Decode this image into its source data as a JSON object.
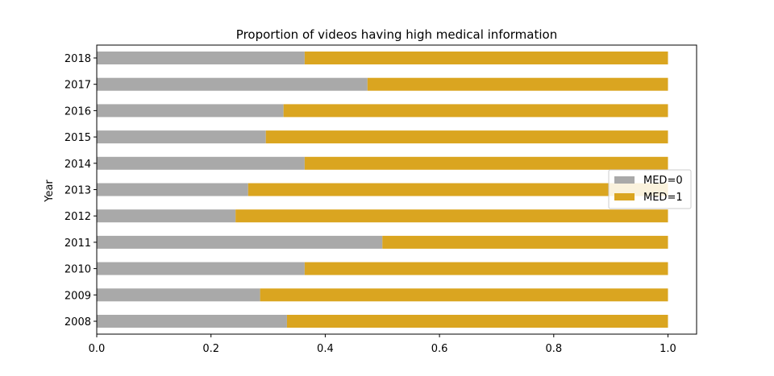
{
  "chart_data": {
    "type": "bar",
    "orientation": "horizontal",
    "stacked": true,
    "title": "Proportion of videos having high medical information",
    "xlabel": "",
    "ylabel": "Year",
    "categories": [
      "2008",
      "2009",
      "2010",
      "2011",
      "2012",
      "2013",
      "2014",
      "2015",
      "2016",
      "2017",
      "2018"
    ],
    "series": [
      {
        "name": "MED=0",
        "color": "#a9a9a9",
        "values": [
          0.333,
          0.286,
          0.364,
          0.5,
          0.243,
          0.265,
          0.364,
          0.296,
          0.327,
          0.474,
          0.364
        ]
      },
      {
        "name": "MED=1",
        "color": "#daa520",
        "values": [
          0.667,
          0.714,
          0.636,
          0.5,
          0.757,
          0.735,
          0.636,
          0.704,
          0.673,
          0.526,
          0.636
        ]
      }
    ],
    "xlim": [
      0,
      1.05
    ],
    "xticks": [
      "0.0",
      "0.2",
      "0.4",
      "0.6",
      "0.8",
      "1.0"
    ],
    "grid": false,
    "legend": "center-right"
  }
}
